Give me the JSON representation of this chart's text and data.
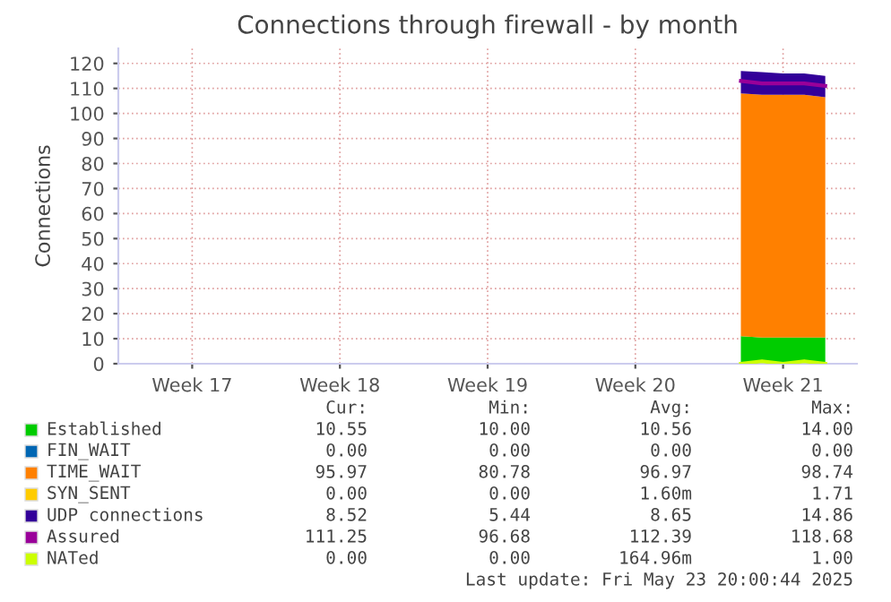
{
  "chart_data": {
    "type": "area",
    "title": "Connections through firewall - by month",
    "ylabel": "Connections",
    "stacked": true,
    "grid": true,
    "legend": "bottom",
    "categories": [
      null,
      null,
      null,
      "Week 17",
      null,
      null,
      null,
      null,
      null,
      null,
      "Week 18",
      null,
      null,
      null,
      null,
      null,
      null,
      "Week 19",
      null,
      null,
      null,
      null,
      null,
      null,
      "Week 20",
      null,
      null,
      null,
      null,
      null,
      null,
      "Week 21",
      null,
      null,
      null
    ],
    "ylim": [
      0,
      126
    ],
    "yticks": [
      0,
      10,
      20,
      30,
      40,
      50,
      60,
      70,
      80,
      90,
      100,
      110,
      120
    ],
    "series": [
      {
        "name": "Established",
        "color": "#00cc00",
        "values": [
          null,
          null,
          null,
          null,
          null,
          null,
          null,
          null,
          null,
          null,
          null,
          null,
          null,
          null,
          null,
          null,
          null,
          null,
          null,
          null,
          null,
          null,
          null,
          null,
          null,
          null,
          null,
          null,
          null,
          11,
          10.5,
          10.5,
          10.5,
          10.5,
          null
        ]
      },
      {
        "name": "FIN_WAIT",
        "color": "#0066b3",
        "values": [
          null,
          null,
          null,
          null,
          null,
          null,
          null,
          null,
          null,
          null,
          null,
          null,
          null,
          null,
          null,
          null,
          null,
          null,
          null,
          null,
          null,
          null,
          null,
          null,
          null,
          null,
          null,
          null,
          null,
          null,
          null,
          null,
          null,
          null,
          null
        ]
      },
      {
        "name": "TIME_WAIT",
        "color": "#ff8000",
        "values": [
          null,
          null,
          null,
          null,
          null,
          null,
          null,
          null,
          null,
          null,
          null,
          null,
          null,
          null,
          null,
          null,
          null,
          null,
          null,
          null,
          null,
          null,
          null,
          null,
          null,
          null,
          null,
          null,
          null,
          97,
          97,
          97,
          97,
          96,
          null
        ]
      },
      {
        "name": "SYN_SENT",
        "color": "#ffcc00",
        "values": [
          null,
          null,
          null,
          null,
          null,
          null,
          null,
          null,
          null,
          null,
          null,
          null,
          null,
          null,
          null,
          null,
          null,
          null,
          null,
          null,
          null,
          null,
          null,
          null,
          null,
          null,
          null,
          null,
          null,
          null,
          null,
          null,
          null,
          null,
          null
        ]
      },
      {
        "name": "UDP connections",
        "color": "#330099",
        "values": [
          null,
          null,
          null,
          null,
          null,
          null,
          null,
          null,
          null,
          null,
          null,
          null,
          null,
          null,
          null,
          null,
          null,
          null,
          null,
          null,
          null,
          null,
          null,
          null,
          null,
          null,
          null,
          null,
          null,
          9,
          9,
          8.5,
          8.5,
          8.5,
          null
        ]
      },
      {
        "name": "Assured",
        "type": "line",
        "color": "#990099",
        "values": [
          null,
          null,
          null,
          null,
          null,
          null,
          null,
          null,
          null,
          null,
          null,
          null,
          null,
          null,
          null,
          null,
          null,
          null,
          null,
          null,
          null,
          null,
          null,
          null,
          null,
          null,
          null,
          null,
          null,
          113,
          112,
          112,
          112,
          111,
          null
        ]
      },
      {
        "name": "NATed",
        "type": "line",
        "color": "#ccff00",
        "values": [
          null,
          null,
          null,
          null,
          null,
          null,
          null,
          null,
          null,
          null,
          null,
          null,
          null,
          null,
          null,
          null,
          null,
          null,
          null,
          null,
          null,
          null,
          null,
          null,
          null,
          null,
          null,
          null,
          null,
          0,
          1,
          0,
          1,
          0,
          null
        ]
      }
    ],
    "annotations": [
      "Cur:",
      "Min:",
      "Avg:",
      "Max:",
      "10.55",
      "10.00",
      "10.56",
      "14.00",
      "0.00",
      "0.00",
      "0.00",
      "0.00",
      "95.97",
      "80.78",
      "96.97",
      "98.74",
      "0.00",
      "0.00",
      "1.60m",
      "1.71",
      "8.52",
      "5.44",
      "8.65",
      "14.86",
      "111.25",
      "96.68",
      "112.39",
      "118.68",
      "0.00",
      "0.00",
      "164.96m",
      "1.00",
      "Last update: Fri May 23 20:00:44 2025"
    ]
  }
}
